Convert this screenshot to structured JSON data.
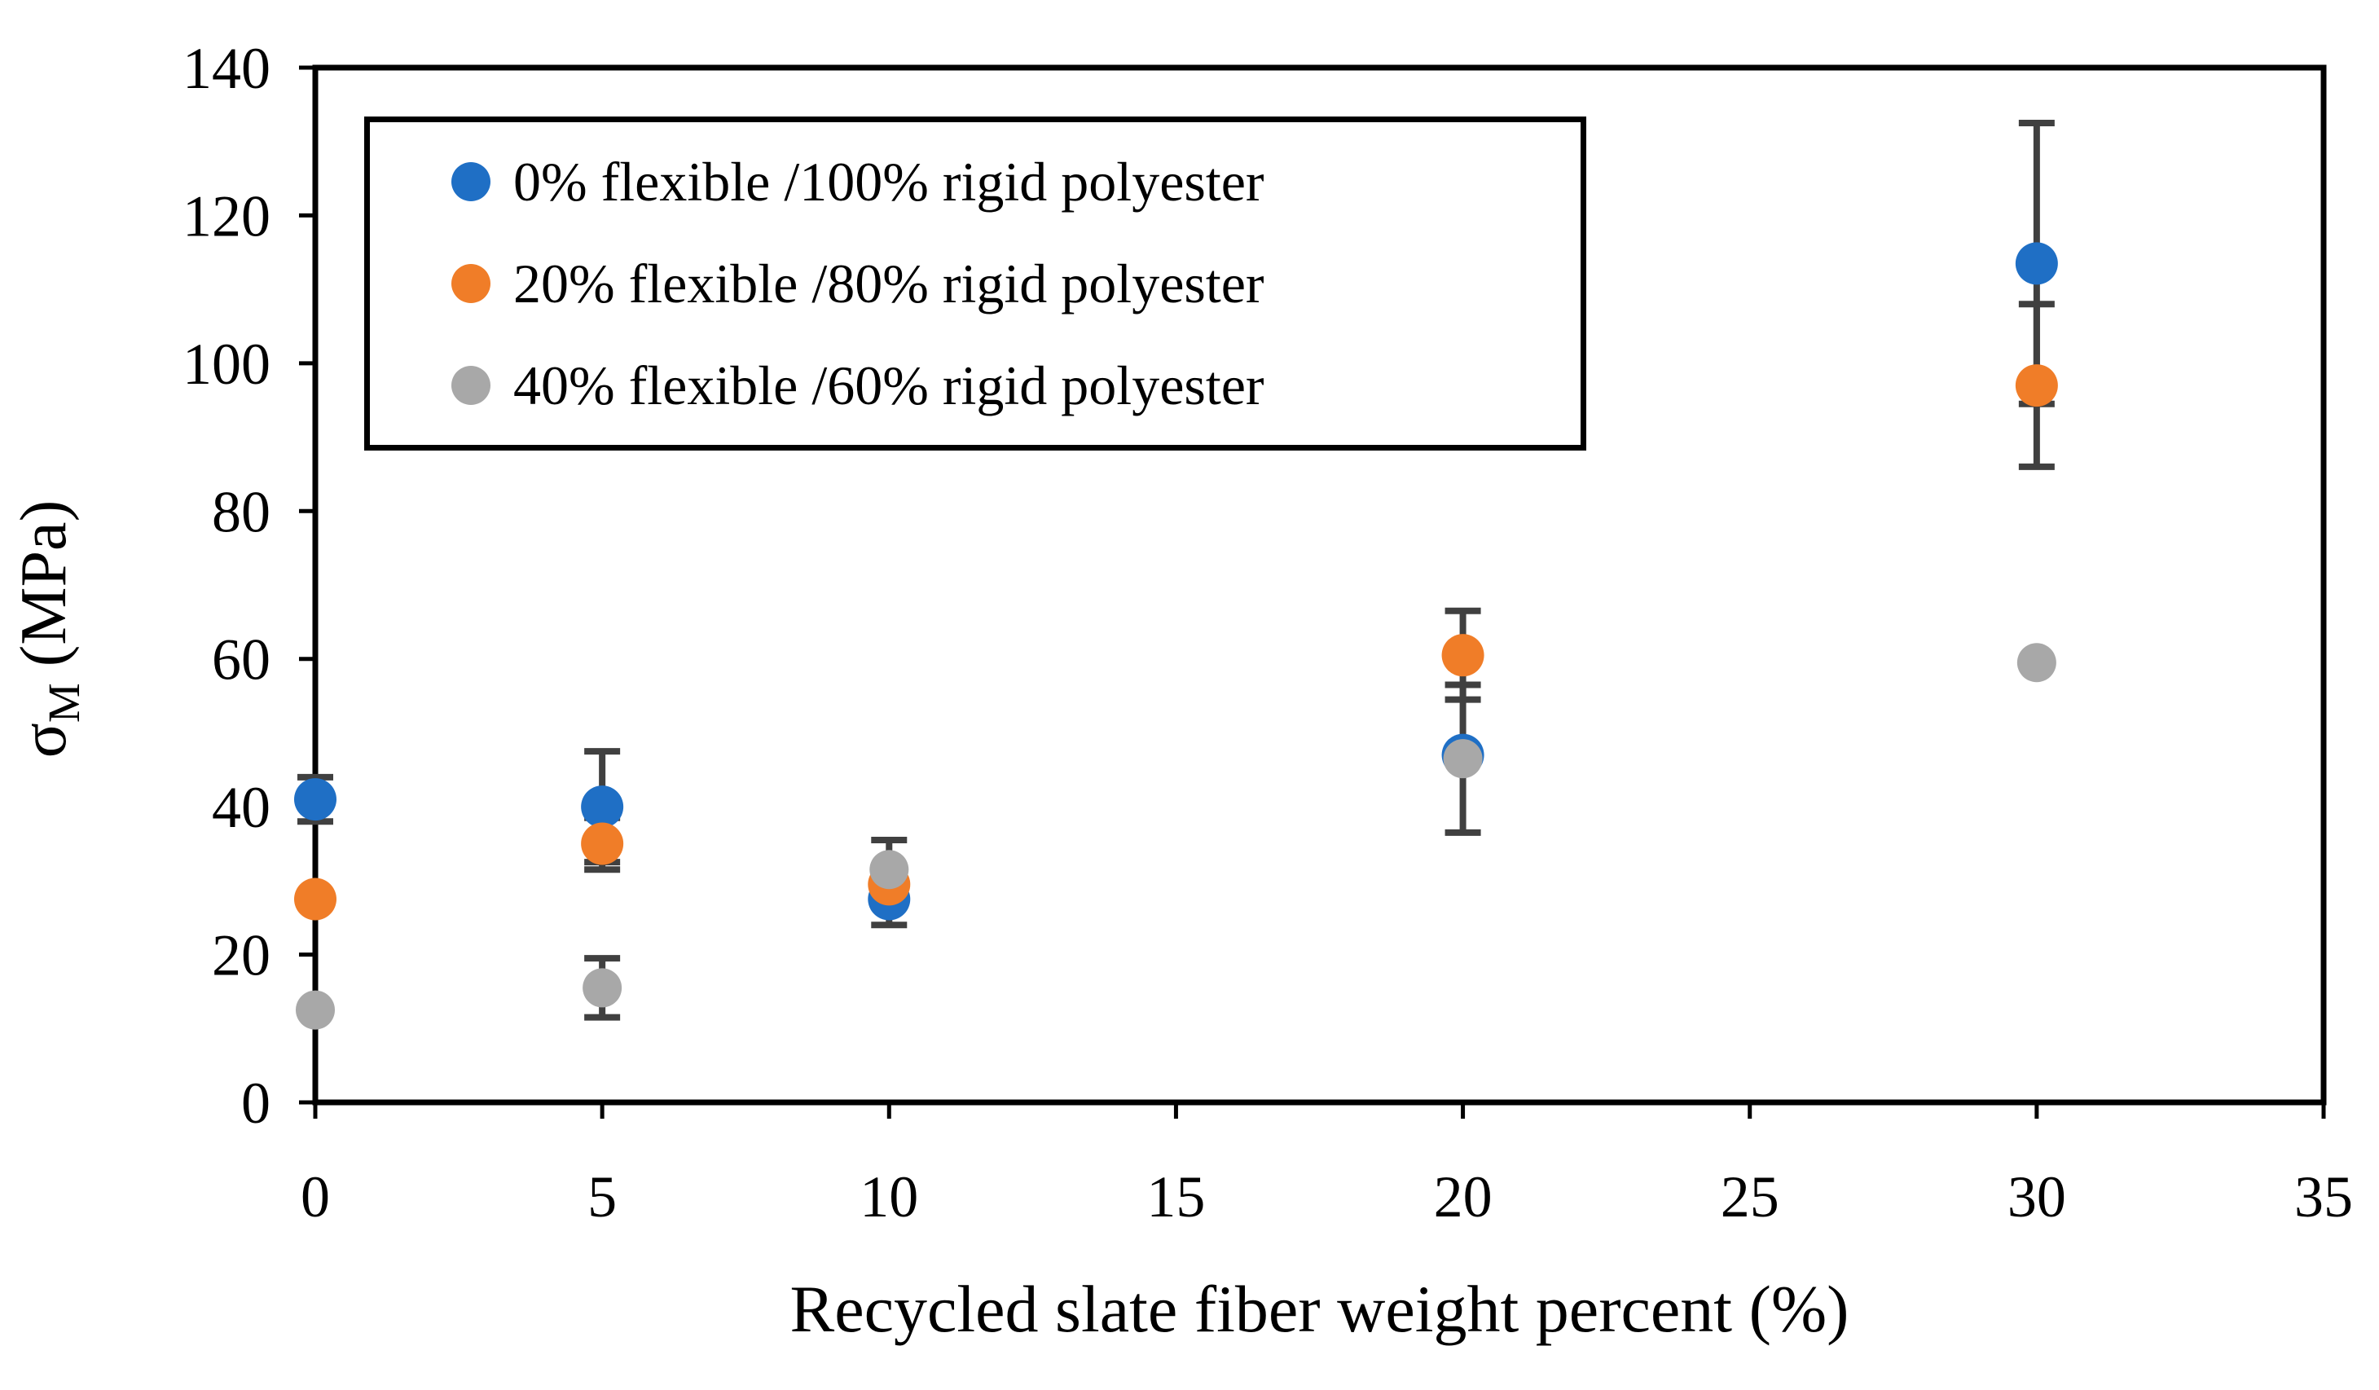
{
  "figure": {
    "background_color": "#ffffff",
    "frame_color": "#000000",
    "error_bar_color": "#404040"
  },
  "chart_data": {
    "type": "scatter",
    "title": "",
    "xlabel": "Recycled slate fiber weight percent (%)",
    "ylabel": "σM (MPa)",
    "ylabel_parts": {
      "symbol": "σ",
      "subscript": "M",
      "unit": " (MPa)"
    },
    "xlim": [
      0,
      35
    ],
    "ylim": [
      0,
      140
    ],
    "x_ticks": [
      0,
      5,
      10,
      15,
      20,
      25,
      30,
      35
    ],
    "y_ticks": [
      0,
      20,
      40,
      60,
      80,
      100,
      120,
      140
    ],
    "grid": false,
    "legend_position": "top-left-inside",
    "series": [
      {
        "name": "0% flexible /100% rigid polyester",
        "color": "#1f6fc5",
        "marker_radius": 26,
        "points": [
          {
            "x": 0,
            "y": 41,
            "err": 3
          },
          {
            "x": 5,
            "y": 40,
            "err": 7.5
          },
          {
            "x": 10,
            "y": 27.5,
            "err": 3.5
          },
          {
            "x": 20,
            "y": 47,
            "err": 0
          },
          {
            "x": 30,
            "y": 113.5,
            "err": 19
          }
        ]
      },
      {
        "name": "20% flexible /80% rigid polyester",
        "color": "#f07d28",
        "marker_radius": 26,
        "points": [
          {
            "x": 0,
            "y": 27.5,
            "err": 0
          },
          {
            "x": 5,
            "y": 35,
            "err": 3.5
          },
          {
            "x": 10,
            "y": 29.5,
            "err": 0
          },
          {
            "x": 20,
            "y": 60.5,
            "err": 6
          },
          {
            "x": 30,
            "y": 97,
            "err": 11
          }
        ]
      },
      {
        "name": "40% flexible /60% rigid polyester",
        "color": "#a8a8a8",
        "marker_radius": 24,
        "points": [
          {
            "x": 0,
            "y": 12.5,
            "err": 0
          },
          {
            "x": 5,
            "y": 15.5,
            "err": 4
          },
          {
            "x": 10,
            "y": 31.5,
            "err": 4
          },
          {
            "x": 20,
            "y": 46.5,
            "err": 10
          },
          {
            "x": 30,
            "y": 59.5,
            "err": 0
          }
        ]
      }
    ]
  }
}
